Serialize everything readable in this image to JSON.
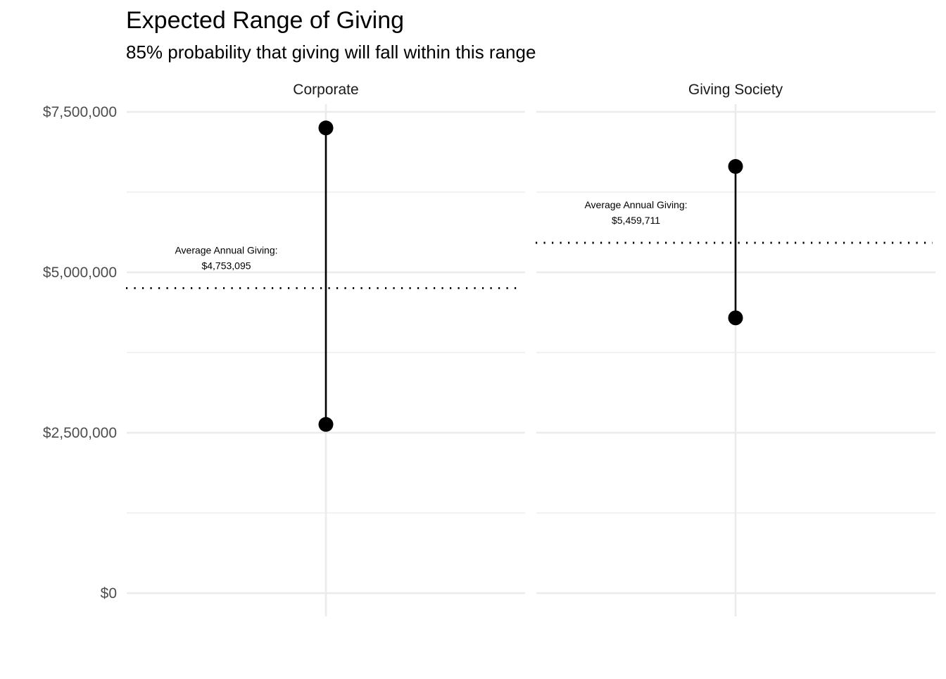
{
  "chart_data": {
    "type": "scatter",
    "title": "Expected Range of Giving",
    "subtitle": "85% probability that giving will fall within this range",
    "xlabel": "",
    "ylabel": "",
    "ylim": [
      0,
      7500000
    ],
    "y_ticks": [
      0,
      2500000,
      5000000,
      7500000
    ],
    "y_tick_labels": [
      "$0",
      "$2,500,000",
      "$5,000,000",
      "$7,500,000"
    ],
    "grid": true,
    "facets": [
      {
        "name": "Corporate",
        "low": 2630000,
        "high": 7250000,
        "average": 4753095,
        "average_label": "Average Annual Giving:",
        "average_value_label": "$4,753,095"
      },
      {
        "name": "Giving Society",
        "low": 4290000,
        "high": 6650000,
        "average": 5459711,
        "average_label": "Average Annual Giving:",
        "average_value_label": "$5,459,711"
      }
    ]
  }
}
